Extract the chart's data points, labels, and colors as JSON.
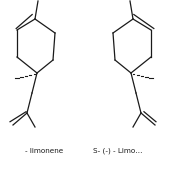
{
  "background_color": "#ffffff",
  "line_color": "#1a1a1a",
  "text_color": "#1a1a1a",
  "label_left": "- limonene",
  "label_right": "S- (-) - Limo…",
  "label_fontsize": 5.2,
  "figsize": [
    1.73,
    1.73
  ],
  "dpi": 100
}
